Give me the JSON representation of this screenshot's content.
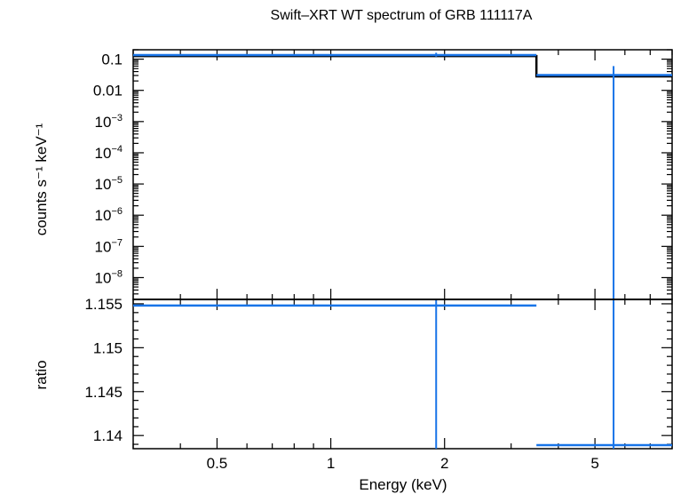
{
  "title": "Swift–XRT WT spectrum of GRB 111117A",
  "colors": {
    "data": "#1874e8",
    "model": "#000000",
    "frame": "#000000"
  },
  "chart_data": [
    {
      "type": "line",
      "name": "spectrum-panel",
      "title": "Swift–XRT WT spectrum of GRB 111117A",
      "xlabel": "Energy (keV)",
      "ylabel": "counts s⁻¹ keV⁻¹",
      "xscale": "log",
      "yscale": "log",
      "xlim": [
        0.3,
        8.0
      ],
      "ylim": [
        2e-09,
        0.2
      ],
      "ytick_labels": [
        {
          "value": 0.1,
          "label": "0.1"
        },
        {
          "value": 0.01,
          "label": "0.01"
        },
        {
          "value": 0.001,
          "base": "10",
          "exp": "−3"
        },
        {
          "value": 0.0001,
          "base": "10",
          "exp": "−4"
        },
        {
          "value": 1e-05,
          "base": "10",
          "exp": "−5"
        },
        {
          "value": 1e-06,
          "base": "10",
          "exp": "−6"
        },
        {
          "value": 1e-07,
          "base": "10",
          "exp": "−7"
        },
        {
          "value": 1e-08,
          "base": "10",
          "exp": "−8"
        }
      ],
      "data_points": [
        {
          "x": 1.9,
          "xerr": [
            0.3,
            3.5
          ],
          "y": 0.135,
          "yerr": [
            0.12,
            0.16
          ]
        },
        {
          "x": 5.6,
          "xerr": [
            3.5,
            8.0
          ],
          "y": 0.031,
          "yerr": [
            2e-09,
            0.06
          ]
        }
      ],
      "model_steps": [
        {
          "x": [
            0.3,
            3.5
          ],
          "y": 0.125
        },
        {
          "x": [
            3.5,
            8.0
          ],
          "y": 0.028
        }
      ]
    },
    {
      "type": "line",
      "name": "ratio-panel",
      "xlabel": "Energy (keV)",
      "ylabel": "ratio",
      "xscale": "log",
      "yscale": "linear",
      "xlim": [
        0.3,
        8.0
      ],
      "ylim": [
        1.1385,
        1.1555
      ],
      "xtick_labels": [
        {
          "value": 0.5,
          "label": "0.5"
        },
        {
          "value": 1,
          "label": "1"
        },
        {
          "value": 2,
          "label": "2"
        },
        {
          "value": 5,
          "label": "5"
        }
      ],
      "ytick_labels": [
        {
          "value": 1.155,
          "label": "1.155"
        },
        {
          "value": 1.15,
          "label": "1.15"
        },
        {
          "value": 1.145,
          "label": "1.145"
        },
        {
          "value": 1.14,
          "label": "1.14"
        }
      ],
      "data_points": [
        {
          "x": 1.9,
          "xerr": [
            0.3,
            3.5
          ],
          "y": 1.1548,
          "yerr": [
            1.1385,
            1.1555
          ]
        },
        {
          "x": 5.6,
          "xerr": [
            3.5,
            8.0
          ],
          "y": 1.1389,
          "yerr": [
            1.1385,
            1.1555
          ]
        }
      ]
    }
  ]
}
